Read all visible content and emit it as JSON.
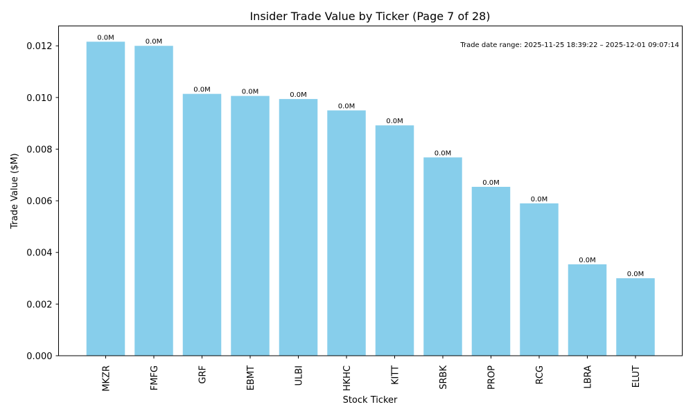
{
  "chart_data": {
    "type": "bar",
    "title": "Insider Trade Value by Ticker (Page 7 of 28)",
    "xlabel": "Stock Ticker",
    "ylabel": "Trade Value ($M)",
    "annotation": "Trade date range: 2025-11-25 18:39:22 – 2025-12-01 09:07:14",
    "categories": [
      "MKZR",
      "FMFG",
      "GRF",
      "EBMT",
      "ULBI",
      "HKHC",
      "KITT",
      "SRBK",
      "PROP",
      "RCG",
      "LBRA",
      "ELUT"
    ],
    "values": [
      0.01216,
      0.012,
      0.01014,
      0.01006,
      0.00994,
      0.0095,
      0.00892,
      0.00768,
      0.00654,
      0.0059,
      0.00354,
      0.003
    ],
    "data_labels": [
      "0.0M",
      "0.0M",
      "0.0M",
      "0.0M",
      "0.0M",
      "0.0M",
      "0.0M",
      "0.0M",
      "0.0M",
      "0.0M",
      "0.0M",
      "0.0M"
    ],
    "ylim": [
      0,
      0.01277
    ],
    "yticks": [
      0.0,
      0.002,
      0.004,
      0.006,
      0.008,
      0.01,
      0.012
    ],
    "ytick_labels": [
      "0.000",
      "0.002",
      "0.004",
      "0.006",
      "0.008",
      "0.010",
      "0.012"
    ],
    "grid": false,
    "bar_color": "#87CEEB"
  }
}
